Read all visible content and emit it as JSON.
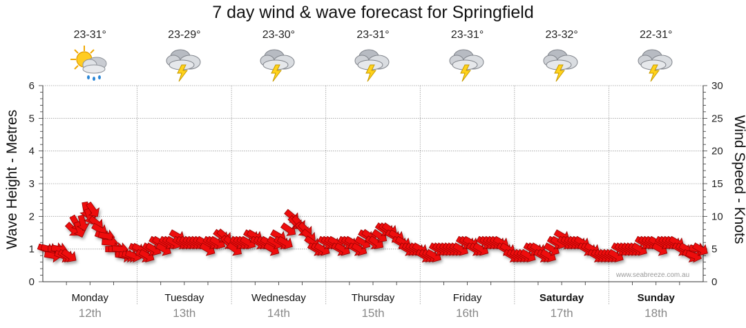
{
  "page_title": "7 day wind & wave forecast for Springfield",
  "watermark": "www.seabreeze.com.au",
  "days": [
    {
      "name": "Monday",
      "date": "12th",
      "temp": "23-31°",
      "icon": "sun-cloud-rain-icon",
      "bold": false
    },
    {
      "name": "Tuesday",
      "date": "13th",
      "temp": "23-29°",
      "icon": "thunderstorm-icon",
      "bold": false
    },
    {
      "name": "Wednesday",
      "date": "14th",
      "temp": "23-30°",
      "icon": "thunderstorm-icon",
      "bold": false
    },
    {
      "name": "Thursday",
      "date": "15th",
      "temp": "23-31°",
      "icon": "thunderstorm-icon",
      "bold": false
    },
    {
      "name": "Friday",
      "date": "16th",
      "temp": "23-31°",
      "icon": "thunderstorm-icon",
      "bold": false
    },
    {
      "name": "Saturday",
      "date": "17th",
      "temp": "23-32°",
      "icon": "thunderstorm-icon",
      "bold": true
    },
    {
      "name": "Sunday",
      "date": "18th",
      "temp": "22-31°",
      "icon": "thunderstorm-icon",
      "bold": true
    }
  ],
  "colors": {
    "arrow": "#ee1111",
    "arrow_edge": "#990000",
    "grid": "#9a9a9a"
  },
  "chart_data": {
    "type": "line",
    "title": "7 day wind & wave forecast for Springfield",
    "ylabel_left": "Wave Height - Metres",
    "ylabel_right": "Wind Speed - Knots",
    "ylim_left": [
      0,
      6
    ],
    "ylim_right": [
      0,
      30
    ],
    "yticks_left": [
      "0",
      "1",
      "2",
      "3",
      "4",
      "5",
      "6"
    ],
    "yticks_right": [
      "0",
      "5",
      "10",
      "15",
      "20",
      "25",
      "30"
    ],
    "grid": true,
    "series": [
      {
        "name": "Wind Speed - Knots",
        "axis": "right",
        "marker": "direction-arrow",
        "values": [
          5,
          5,
          4,
          5,
          5,
          4,
          4,
          4,
          8,
          9,
          8,
          9,
          11,
          10,
          11,
          9,
          8,
          7,
          7,
          6,
          5,
          5,
          5,
          4,
          4,
          4,
          4,
          5,
          5,
          4,
          4,
          5,
          5,
          6,
          6,
          5,
          6,
          6,
          6,
          7,
          6,
          6,
          6,
          6,
          6,
          6,
          6,
          6,
          5,
          6,
          6,
          6,
          7,
          7,
          6,
          6,
          5,
          6,
          6,
          6,
          6,
          7,
          7,
          6,
          6,
          6,
          6,
          5,
          6,
          7,
          6,
          6,
          8,
          10,
          9,
          9,
          8,
          8,
          7,
          6,
          5,
          5,
          5,
          6,
          6,
          6,
          6,
          5,
          5,
          6,
          6,
          6,
          5,
          5,
          6,
          7,
          7,
          6,
          6,
          7,
          8,
          8,
          8,
          7,
          7,
          6,
          6,
          5,
          5,
          5,
          5,
          5,
          4,
          4,
          4,
          4,
          5,
          5,
          5,
          5,
          5,
          5,
          5,
          5,
          6,
          6,
          6,
          5,
          5,
          5,
          6,
          6,
          6,
          6,
          6,
          6,
          5,
          5,
          4,
          4,
          4,
          4,
          4,
          4,
          5,
          5,
          5,
          4,
          4,
          4,
          5,
          6,
          6,
          7,
          6,
          6,
          6,
          6,
          6,
          6,
          5,
          5,
          5,
          4,
          4,
          4,
          4,
          4,
          4,
          4,
          5,
          5,
          5,
          5,
          5,
          5,
          5,
          6,
          6,
          6,
          6,
          6,
          5,
          6,
          6,
          6,
          6,
          6,
          5,
          5,
          5,
          4,
          4,
          5,
          5
        ],
        "directions_deg": [
          70,
          75,
          80,
          85,
          80,
          70,
          60,
          55,
          45,
          30,
          20,
          15,
          10,
          20,
          35,
          50,
          60,
          70,
          80,
          85,
          90,
          90,
          85,
          80,
          80,
          75,
          70,
          65,
          65,
          60,
          60,
          60,
          60,
          60,
          60,
          60,
          60,
          60,
          60,
          60,
          60,
          60,
          60,
          60,
          60,
          60,
          60,
          60,
          60,
          60,
          60,
          60,
          55,
          50,
          45,
          50,
          55,
          60,
          60,
          60,
          60,
          60,
          60,
          60,
          60,
          60,
          60,
          60,
          60,
          60,
          60,
          60,
          55,
          50,
          45,
          40,
          40,
          45,
          50,
          55,
          60,
          60,
          60,
          60,
          60,
          60,
          60,
          60,
          60,
          60,
          60,
          60,
          60,
          60,
          60,
          60,
          55,
          55,
          55,
          55,
          55,
          55,
          55,
          60,
          60,
          60,
          60,
          60,
          60,
          60,
          60,
          60,
          60,
          60,
          60,
          60,
          60,
          60,
          60,
          60,
          60,
          60,
          60,
          60,
          60,
          60,
          60,
          60,
          60,
          60,
          60,
          60,
          60,
          60,
          60,
          60,
          60,
          60,
          60,
          60,
          60,
          60,
          60,
          60,
          60,
          60,
          60,
          60,
          60,
          60,
          60,
          60,
          60,
          60,
          60,
          60,
          60,
          60,
          60,
          60,
          60,
          60,
          60,
          60,
          60,
          60,
          60,
          60,
          60,
          60,
          60,
          60,
          60,
          60,
          60,
          60,
          60,
          60,
          60,
          60,
          60,
          60,
          60,
          60,
          60,
          60,
          60,
          60,
          60,
          60,
          60,
          60,
          70,
          80
        ]
      }
    ]
  }
}
